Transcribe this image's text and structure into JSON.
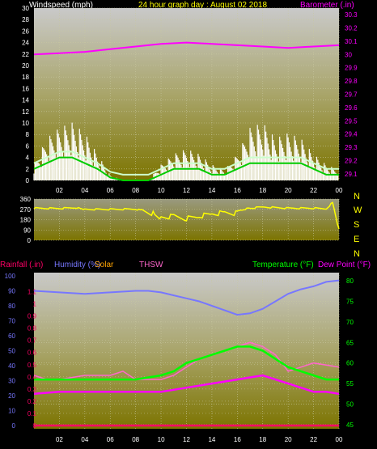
{
  "header": {
    "left_title": "Windspeed (mph)",
    "center_title": "24 hour graph day : August 02 2018",
    "right_title": "Barometer (.in)"
  },
  "colors": {
    "windspeed": "#ffffff",
    "wind_avg": "#00cc00",
    "wind_light": "#ccffcc",
    "barometer": "#ff00ff",
    "wind_dir": "#ffff00",
    "humidity": "#7777ff",
    "solar": "#ffa500",
    "thsw": "#ff66cc",
    "temperature": "#00ff00",
    "dewpoint": "#ff00ff",
    "rainfall": "#ff0066",
    "grid": "#c8c8a0"
  },
  "chart_data": [
    {
      "id": "wind-baro",
      "type": "line",
      "x_ticks": [
        "02",
        "04",
        "06",
        "08",
        "10",
        "12",
        "14",
        "16",
        "18",
        "20",
        "22",
        "00"
      ],
      "ylabel_left": "Windspeed (mph)",
      "ylim_left": [
        0,
        30
      ],
      "yticks_left": [
        0,
        2,
        4,
        6,
        8,
        10,
        12,
        14,
        16,
        18,
        20,
        22,
        24,
        26,
        28,
        30
      ],
      "ylabel_right": "Barometer (.in)",
      "ylim_right": [
        29.05,
        30.35
      ],
      "yticks_right": [
        "29.1",
        "29.2",
        "29.3",
        "29.4",
        "29.5",
        "29.6",
        "29.7",
        "29.8",
        "29.9",
        "30",
        "30.1",
        "30.2",
        "30.3"
      ],
      "series": [
        {
          "name": "Barometer",
          "axis": "right",
          "hours": [
            0,
            2,
            4,
            6,
            8,
            10,
            12,
            14,
            16,
            18,
            20,
            22,
            24
          ],
          "values": [
            30.0,
            30.01,
            30.02,
            30.04,
            30.06,
            30.08,
            30.09,
            30.08,
            30.07,
            30.06,
            30.05,
            30.06,
            30.07
          ]
        },
        {
          "name": "Windspeed",
          "axis": "left",
          "hours": [
            0,
            1,
            2,
            3,
            4,
            5,
            6,
            7,
            8,
            9,
            10,
            11,
            12,
            13,
            14,
            15,
            16,
            17,
            18,
            19,
            20,
            21,
            22,
            23,
            24
          ],
          "values": [
            3,
            8,
            10,
            11,
            9,
            5,
            1,
            0,
            0,
            0,
            3,
            5,
            6,
            5,
            3,
            2,
            5,
            10,
            11,
            8,
            9,
            8,
            5,
            3,
            2
          ]
        },
        {
          "name": "Wind Average",
          "axis": "left",
          "hours": [
            0,
            1,
            2,
            3,
            4,
            5,
            6,
            7,
            8,
            9,
            10,
            11,
            12,
            13,
            14,
            15,
            16,
            17,
            18,
            19,
            20,
            21,
            22,
            23,
            24
          ],
          "values": [
            2,
            3,
            4,
            4,
            3,
            2,
            0.5,
            0,
            0,
            0,
            1,
            2,
            2,
            2,
            1,
            1,
            2,
            3,
            3,
            3,
            3,
            3,
            2,
            1,
            1
          ]
        }
      ]
    },
    {
      "id": "wind-direction",
      "type": "line",
      "x_ticks": [],
      "ylim": [
        0,
        360
      ],
      "yticks": [
        0,
        90,
        180,
        270,
        360
      ],
      "direction_labels": [
        "N",
        "W",
        "S",
        "E",
        "N"
      ],
      "series": [
        {
          "name": "Wind Direction",
          "hours": [
            0,
            2,
            3.5,
            4,
            6,
            8,
            9.5,
            10,
            11,
            12,
            13,
            14,
            15,
            16,
            16.5,
            17,
            18,
            20,
            22,
            23,
            23.5,
            24
          ],
          "values": [
            280,
            278,
            285,
            270,
            270,
            272,
            230,
            200,
            210,
            190,
            210,
            230,
            240,
            235,
            270,
            280,
            290,
            280,
            280,
            275,
            330,
            100
          ]
        }
      ]
    },
    {
      "id": "temp-humidity",
      "type": "line",
      "x_ticks": [
        "02",
        "04",
        "06",
        "08",
        "10",
        "12",
        "14",
        "16",
        "18",
        "20",
        "22",
        "00"
      ],
      "legend": [
        "Rainfall (.in)",
        "Humidity (%)",
        "Solar",
        "THSW",
        "Temperature (°F)",
        "Dew Point (°F)"
      ],
      "ylim_rain": [
        0,
        1.15
      ],
      "yticks_rain": [
        "0",
        "0.1",
        "0.2",
        "0.3",
        "0.4",
        "0.5",
        "0.6",
        "0.7",
        "0.8",
        "0.9",
        "1",
        "1.1"
      ],
      "ylim_humidity": [
        0,
        100
      ],
      "yticks_humidity": [
        "0",
        "10",
        "20",
        "30",
        "40",
        "50",
        "60",
        "70",
        "80",
        "90",
        "100"
      ],
      "ylim_temp": [
        44,
        82
      ],
      "yticks_temp": [
        "45",
        "50",
        "55",
        "60",
        "65",
        "70",
        "75",
        "80"
      ],
      "series": [
        {
          "name": "Humidity",
          "axis": "humidity",
          "hours": [
            0,
            2,
            4,
            6,
            8,
            9,
            10,
            11,
            12,
            13,
            14,
            15,
            16,
            17,
            18,
            19,
            20,
            21,
            22,
            23,
            24
          ],
          "values": [
            90,
            89,
            88,
            89,
            90,
            90,
            89,
            87,
            85,
            83,
            80,
            77,
            74,
            75,
            78,
            83,
            88,
            91,
            93,
            96,
            97
          ]
        },
        {
          "name": "Temperature",
          "axis": "temp",
          "hours": [
            0,
            2,
            4,
            6,
            8,
            9,
            10,
            11,
            12,
            13,
            14,
            15,
            16,
            17,
            18,
            19,
            20,
            21,
            22,
            23,
            24
          ],
          "values": [
            56,
            56,
            56,
            56,
            56,
            56.5,
            57,
            58,
            60,
            61,
            62,
            63,
            64,
            64,
            63,
            61,
            59,
            58,
            57,
            56,
            56
          ]
        },
        {
          "name": "THSW",
          "axis": "temp",
          "hours": [
            0,
            1,
            2,
            4,
            6,
            7,
            8,
            10,
            11,
            12,
            13,
            14,
            15,
            16,
            17,
            18,
            19,
            20,
            21,
            22,
            24
          ],
          "values": [
            57,
            56,
            56,
            57,
            57,
            58,
            56,
            56,
            57,
            59,
            61,
            62,
            63,
            64,
            65,
            64,
            62,
            58,
            59,
            60,
            59
          ]
        },
        {
          "name": "Dew Point",
          "axis": "temp",
          "hours": [
            0,
            2,
            4,
            6,
            8,
            10,
            11,
            12,
            13,
            14,
            15,
            16,
            17,
            18,
            19,
            20,
            21,
            22,
            23,
            24
          ],
          "values": [
            52.5,
            53,
            53,
            53,
            53,
            53,
            53.5,
            54,
            54.5,
            55,
            55.5,
            56,
            56.5,
            57,
            56,
            55,
            54,
            53,
            53,
            52.5
          ]
        },
        {
          "name": "Rainfall",
          "axis": "rain",
          "hours": [
            0,
            24
          ],
          "values": [
            0,
            0
          ]
        }
      ]
    }
  ]
}
